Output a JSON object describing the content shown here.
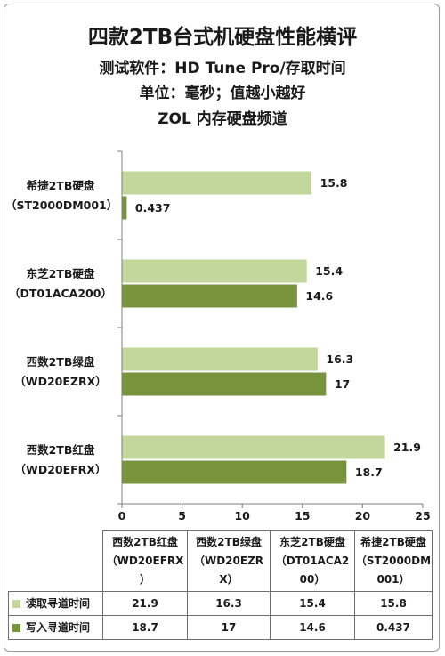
{
  "title": "四款2TB台式机硬盘性能横评",
  "subtitles": [
    "测试软件：HD Tune Pro/存取时间",
    "单位：毫秒；值越小越好",
    "ZOL 内存硬盘频道"
  ],
  "colors": {
    "read": "#c3d69b",
    "write": "#77933c",
    "axis": "#7f7f7f"
  },
  "chart_data": {
    "type": "bar",
    "orientation": "horizontal",
    "categories": [
      [
        "希捷2TB硬盘",
        "（ST2000DM001）"
      ],
      [
        "东芝2TB硬盘",
        "（DT01ACA200）"
      ],
      [
        "西数2TB绿盘",
        "（WD20EZRX）"
      ],
      [
        "西数2TB红盘",
        "（WD20EFRX）"
      ]
    ],
    "series": [
      {
        "name": "读取寻道时间",
        "values": [
          15.8,
          15.4,
          16.3,
          21.9
        ]
      },
      {
        "name": "写入寻道时间",
        "values": [
          0.437,
          14.6,
          17,
          18.7
        ]
      }
    ],
    "value_labels": [
      [
        "15.8",
        "15.4",
        "16.3",
        "21.9"
      ],
      [
        "0.437",
        "14.6",
        "17",
        "18.7"
      ]
    ],
    "xlim": [
      0,
      25
    ],
    "xticks": [
      "0",
      "5",
      "10",
      "15",
      "20",
      "25"
    ],
    "grid": false,
    "legend": "data-table"
  },
  "table": {
    "headers": [
      [
        "西数2TB红盘",
        "（WD20EFRX",
        "）"
      ],
      [
        "西数2TB绿盘",
        "（WD20EZR",
        "X）"
      ],
      [
        "东芝2TB硬盘",
        "（DT01ACA2",
        "00）"
      ],
      [
        "希捷2TB硬盘",
        "（ST2000DM",
        "001）"
      ]
    ],
    "rows": [
      {
        "label": "读取寻道时间",
        "values": [
          "21.9",
          "16.3",
          "15.4",
          "15.8"
        ]
      },
      {
        "label": "写入寻道时间",
        "values": [
          "18.7",
          "17",
          "14.6",
          "0.437"
        ]
      }
    ]
  }
}
